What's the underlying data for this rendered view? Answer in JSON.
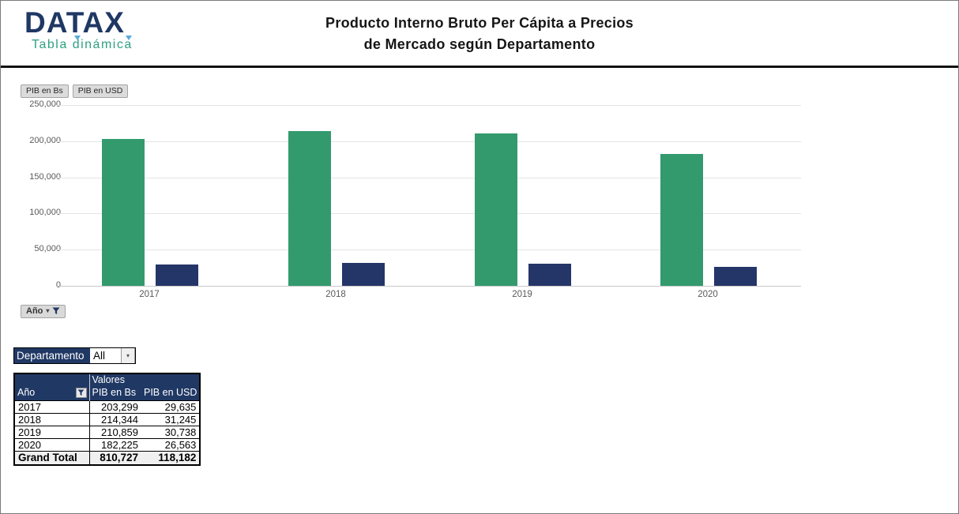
{
  "header": {
    "brand": "DATAX",
    "tagline": "Tabla dinámica",
    "title_line1": "Producto Interno Bruto Per Cápita a Precios",
    "title_line2": "de Mercado según Departamento",
    "brand_color": "#1F3864",
    "tagline_color": "#2EA082"
  },
  "chart": {
    "field_buttons": [
      "PIB en Bs",
      "PIB en USD"
    ],
    "axis_field_button": "Año",
    "gridline_color": "#E4E4E6",
    "axis_text_color": "#595959"
  },
  "chart_data": {
    "type": "bar",
    "categories": [
      "2017",
      "2018",
      "2019",
      "2020"
    ],
    "series": [
      {
        "name": "PIB en Bs",
        "values": [
          203299,
          214344,
          210859,
          182225
        ],
        "color": "#339A6E"
      },
      {
        "name": "PIB en USD",
        "values": [
          29635,
          31245,
          30738,
          26563
        ],
        "color": "#243568"
      }
    ],
    "title": "Producto Interno Bruto Per Cápita a Precios de Mercado según Departamento",
    "xlabel": "",
    "ylabel": "",
    "ylim": [
      0,
      250000
    ],
    "ytick_interval": 50000,
    "ytick_labels_top_to_bottom": [
      "250,000",
      "200,000",
      "150,000",
      "100,000",
      "50,000",
      "0"
    ],
    "grid": true,
    "legend_position": "pivot-field-buttons-top-left"
  },
  "page_filter": {
    "label": "Departamento",
    "value": "All"
  },
  "pivot_table": {
    "values_header": "Valores",
    "row_header": "Año",
    "col_headers": [
      "PIB en Bs",
      "PIB en USD"
    ],
    "rows": [
      {
        "year": "2017",
        "bs": "203,299",
        "usd": "29,635"
      },
      {
        "year": "2018",
        "bs": "214,344",
        "usd": "31,245"
      },
      {
        "year": "2019",
        "bs": "210,859",
        "usd": "30,738"
      },
      {
        "year": "2020",
        "bs": "182,225",
        "usd": "26,563"
      }
    ],
    "grand_total": {
      "label": "Grand Total",
      "bs": "810,727",
      "usd": "118,182"
    },
    "header_bg": "#203864"
  }
}
